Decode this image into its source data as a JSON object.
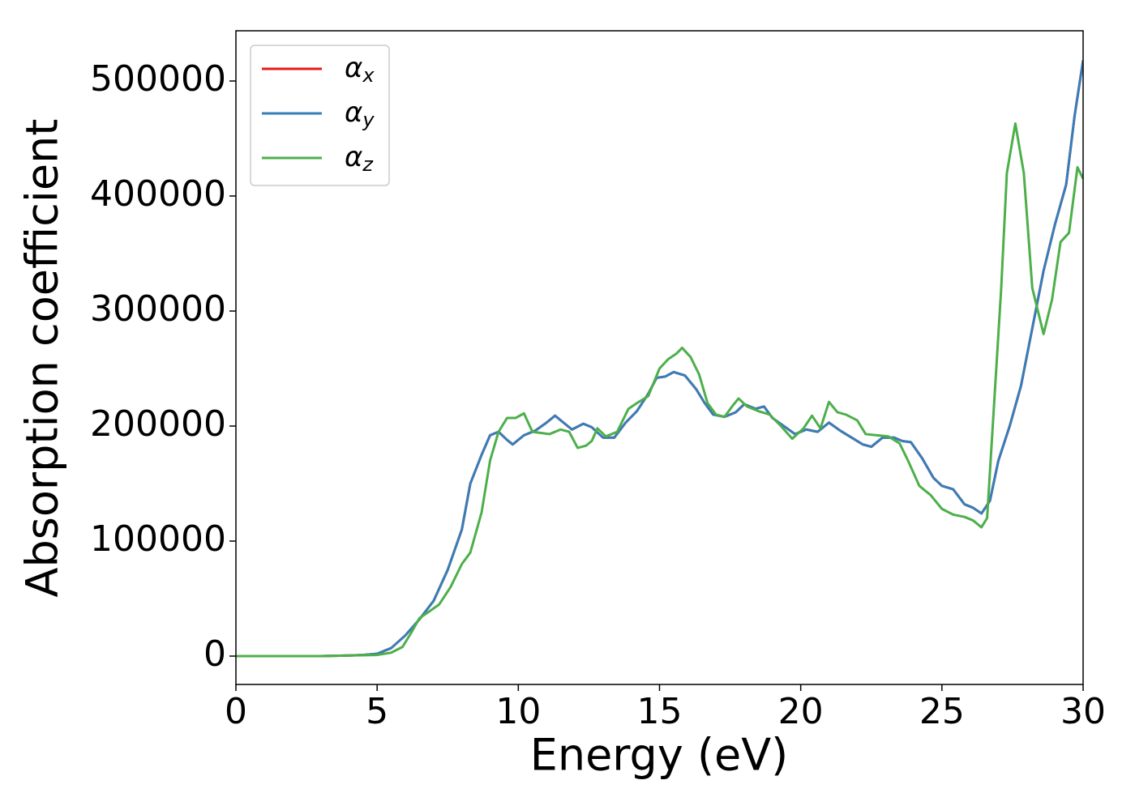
{
  "chart_data": {
    "type": "line",
    "xlabel": "Energy (eV)",
    "ylabel": "Absorption coefficient",
    "xlim": [
      0,
      30
    ],
    "xticks": [
      0,
      5,
      10,
      15,
      20,
      25,
      30
    ],
    "ylim": [
      -24650,
      543660
    ],
    "yticks": [
      0,
      100000,
      200000,
      300000,
      400000,
      500000
    ],
    "legend": "upper left",
    "series": [
      {
        "name": "αx",
        "color": "#e41a1c",
        "x": [
          0,
          1,
          2,
          3,
          4,
          4.5,
          5,
          5.5,
          6,
          6.5,
          7,
          7.5,
          8,
          8.3,
          8.7,
          9,
          9.3,
          9.6,
          9.8,
          10.2,
          10.6,
          11,
          11.3,
          11.6,
          11.9,
          12.3,
          12.6,
          13,
          13.4,
          13.8,
          14.2,
          14.6,
          14.9,
          15.2,
          15.5,
          15.9,
          16.3,
          16.6,
          16.9,
          17.3,
          17.7,
          18,
          18.4,
          18.7,
          19,
          19.4,
          19.8,
          20.2,
          20.6,
          21,
          21.4,
          21.8,
          22.2,
          22.5,
          22.9,
          23.3,
          23.6,
          23.9,
          24.3,
          24.7,
          25,
          25.4,
          25.8,
          26.1,
          26.4,
          26.7,
          27,
          27.4,
          27.8,
          28.2,
          28.6,
          29,
          29.4,
          29.7,
          30
        ],
        "values": [
          0,
          0,
          0,
          0,
          500,
          1000,
          2000,
          7000,
          18000,
          32000,
          48000,
          75000,
          110000,
          150000,
          175000,
          192000,
          195000,
          188000,
          184000,
          192000,
          196000,
          203000,
          209000,
          203000,
          197000,
          202000,
          199000,
          190000,
          190000,
          203000,
          213000,
          228000,
          242000,
          243000,
          247000,
          244000,
          232000,
          220000,
          210000,
          208000,
          212000,
          219000,
          215000,
          217000,
          207000,
          200000,
          193000,
          197000,
          195000,
          203000,
          196000,
          190000,
          184000,
          182000,
          190000,
          190000,
          187000,
          186000,
          172000,
          155000,
          148000,
          145000,
          132000,
          129000,
          124000,
          135000,
          170000,
          200000,
          235000,
          285000,
          335000,
          375000,
          410000,
          470000,
          518000
        ]
      },
      {
        "name": "αy",
        "color": "#377eb8",
        "x": [
          0,
          1,
          2,
          3,
          4,
          4.5,
          5,
          5.5,
          6,
          6.5,
          7,
          7.5,
          8,
          8.3,
          8.7,
          9,
          9.3,
          9.6,
          9.8,
          10.2,
          10.6,
          11,
          11.3,
          11.6,
          11.9,
          12.3,
          12.6,
          13,
          13.4,
          13.8,
          14.2,
          14.6,
          14.9,
          15.2,
          15.5,
          15.9,
          16.3,
          16.6,
          16.9,
          17.3,
          17.7,
          18,
          18.4,
          18.7,
          19,
          19.4,
          19.8,
          20.2,
          20.6,
          21,
          21.4,
          21.8,
          22.2,
          22.5,
          22.9,
          23.3,
          23.6,
          23.9,
          24.3,
          24.7,
          25,
          25.4,
          25.8,
          26.1,
          26.4,
          26.7,
          27,
          27.4,
          27.8,
          28.2,
          28.6,
          29,
          29.4,
          29.7,
          30
        ],
        "values": [
          0,
          0,
          0,
          0,
          500,
          1000,
          2000,
          7000,
          18000,
          32000,
          48000,
          75000,
          110000,
          150000,
          175000,
          192000,
          195000,
          188000,
          184000,
          192000,
          196000,
          203000,
          209000,
          203000,
          197000,
          202000,
          199000,
          190000,
          190000,
          203000,
          213000,
          228000,
          242000,
          243000,
          247000,
          244000,
          232000,
          220000,
          210000,
          208000,
          212000,
          219000,
          215000,
          217000,
          207000,
          200000,
          193000,
          197000,
          195000,
          203000,
          196000,
          190000,
          184000,
          182000,
          190000,
          190000,
          187000,
          186000,
          172000,
          155000,
          148000,
          145000,
          132000,
          129000,
          124000,
          135000,
          170000,
          200000,
          235000,
          285000,
          335000,
          375000,
          410000,
          470000,
          518000
        ]
      },
      {
        "name": "αz",
        "color": "#4daf4a",
        "x": [
          0,
          1,
          2,
          3,
          4,
          5,
          5.5,
          5.9,
          6.2,
          6.5,
          6.8,
          7.2,
          7.6,
          8,
          8.3,
          8.7,
          9,
          9.3,
          9.6,
          9.9,
          10.2,
          10.5,
          10.8,
          11.1,
          11.5,
          11.8,
          12.1,
          12.4,
          12.6,
          12.8,
          13.1,
          13.5,
          13.9,
          14.2,
          14.6,
          15,
          15.3,
          15.6,
          15.8,
          16.1,
          16.4,
          16.7,
          17,
          17.3,
          17.6,
          17.8,
          18.1,
          18.5,
          18.9,
          19.3,
          19.7,
          20.1,
          20.4,
          20.7,
          21,
          21.3,
          21.6,
          22,
          22.3,
          22.7,
          23.1,
          23.5,
          23.8,
          24.2,
          24.6,
          25,
          25.4,
          25.8,
          26.1,
          26.4,
          26.6,
          26.8,
          27.1,
          27.3,
          27.6,
          27.9,
          28.2,
          28.6,
          28.9,
          29.2,
          29.5,
          29.8,
          30
        ],
        "values": [
          0,
          0,
          0,
          0,
          500,
          1000,
          3000,
          8000,
          20000,
          33000,
          38000,
          45000,
          60000,
          80000,
          90000,
          125000,
          170000,
          195000,
          207000,
          207000,
          211000,
          195000,
          194000,
          193000,
          197000,
          195000,
          181000,
          183000,
          187000,
          198000,
          191000,
          195000,
          215000,
          220000,
          226000,
          250000,
          258000,
          263000,
          268000,
          260000,
          245000,
          220000,
          210000,
          208000,
          218000,
          224000,
          217000,
          213000,
          210000,
          200000,
          189000,
          198000,
          209000,
          198000,
          221000,
          212000,
          210000,
          205000,
          193000,
          192000,
          191000,
          185000,
          170000,
          148000,
          140000,
          128000,
          123000,
          121000,
          118000,
          112000,
          120000,
          200000,
          320000,
          420000,
          463000,
          420000,
          320000,
          280000,
          310000,
          360000,
          368000,
          425000,
          415000
        ]
      }
    ]
  }
}
